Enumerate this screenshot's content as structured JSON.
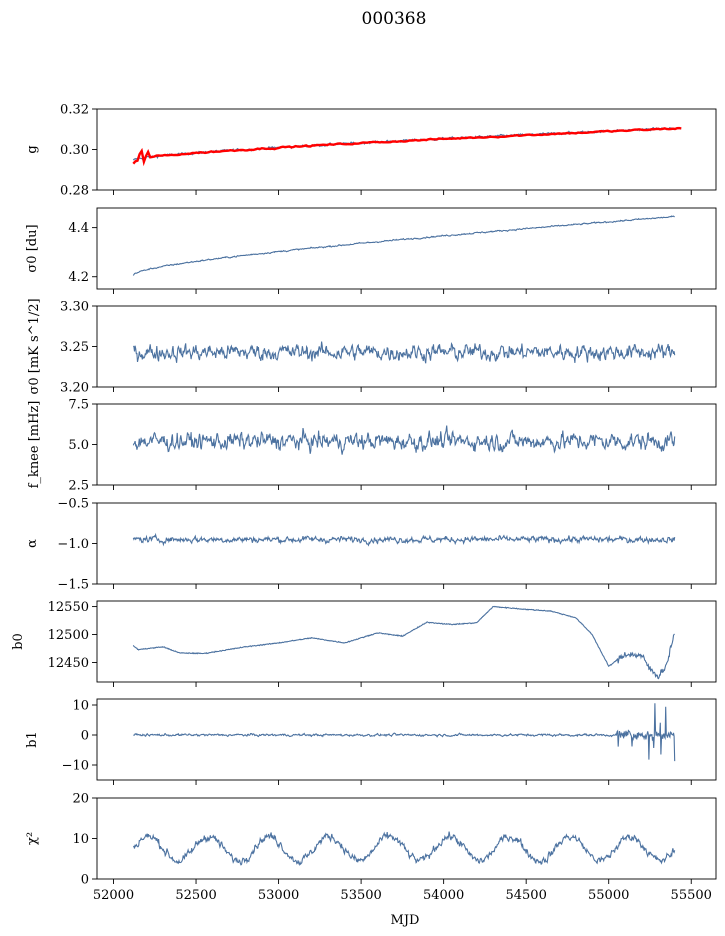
{
  "figure": {
    "title": "000368",
    "xlabel": "MJD"
  },
  "colors": {
    "series": "#4c72a0",
    "fit": "#ff0000"
  },
  "chart_data": {
    "type": "line",
    "title": "000368",
    "xlabel": "MJD",
    "xlim": [
      51900,
      55650
    ],
    "xticks": [
      52000,
      52500,
      53000,
      53500,
      54000,
      54500,
      55000,
      55500
    ],
    "x_start": 52120,
    "x_end": 55400,
    "panels": [
      {
        "id": "g",
        "ylabel": "g",
        "ylim": [
          0.28,
          0.32
        ],
        "yticks": [
          "0.28",
          "0.30",
          "0.32"
        ],
        "ytick_values": [
          0.28,
          0.3,
          0.32
        ],
        "series": [
          {
            "kind": "data",
            "color": "#4c72a0",
            "start": 0.2945,
            "end": 0.3105,
            "noise": 0.0006,
            "x_end": 55400,
            "curve": "concave"
          },
          {
            "kind": "fit",
            "color": "#ff0000",
            "start": 0.2945,
            "end": 0.3105,
            "noise": 0.0004,
            "x_end": 55440,
            "curve": "concave"
          }
        ]
      },
      {
        "id": "sigma0_du",
        "ylabel": "σ0 [du]",
        "ylim": [
          4.15,
          4.48
        ],
        "yticks": [
          "4.2",
          "4.4"
        ],
        "ytick_values": [
          4.2,
          4.4
        ],
        "series": [
          {
            "kind": "data",
            "color": "#4c72a0",
            "start": 4.205,
            "end": 4.445,
            "noise": 0.003,
            "x_end": 55400,
            "curve": "concave"
          }
        ]
      },
      {
        "id": "sigma0_mk",
        "ylabel": "σ0 [mK s^1/2]",
        "ylim": [
          3.2,
          3.3
        ],
        "yticks": [
          "3.20",
          "3.25",
          "3.30"
        ],
        "ytick_values": [
          3.2,
          3.25,
          3.3
        ],
        "series": [
          {
            "kind": "data",
            "color": "#4c72a0",
            "mean": 3.243,
            "noise": 0.01,
            "x_end": 55400
          }
        ]
      },
      {
        "id": "fknee",
        "ylabel": "f_knee [mHz]",
        "ylim": [
          2.5,
          7.5
        ],
        "yticks": [
          "2.5",
          "5.0",
          "7.5"
        ],
        "ytick_values": [
          2.5,
          5.0,
          7.5
        ],
        "series": [
          {
            "kind": "data",
            "color": "#4c72a0",
            "mean": 5.2,
            "noise": 0.55,
            "x_end": 55400
          }
        ]
      },
      {
        "id": "alpha",
        "ylabel": "α",
        "ylim": [
          -1.5,
          -0.5
        ],
        "yticks": [
          "−1.5",
          "−1.0",
          "−0.5"
        ],
        "ytick_values": [
          -1.5,
          -1.0,
          -0.5
        ],
        "series": [
          {
            "kind": "data",
            "color": "#4c72a0",
            "mean": -0.95,
            "noise": 0.04,
            "x_end": 55400
          }
        ]
      },
      {
        "id": "b0",
        "ylabel": "b0",
        "ylim": [
          12415,
          12560
        ],
        "yticks": [
          "12450",
          "12500",
          "12550"
        ],
        "ytick_values": [
          12450,
          12500,
          12550
        ],
        "series": [
          {
            "kind": "data",
            "color": "#4c72a0",
            "x_end": 55400,
            "keypoints": [
              [
                52120,
                12480
              ],
              [
                52150,
                12473
              ],
              [
                52300,
                12478
              ],
              [
                52400,
                12467
              ],
              [
                52550,
                12466
              ],
              [
                52800,
                12478
              ],
              [
                53000,
                12485
              ],
              [
                53200,
                12494
              ],
              [
                53400,
                12485
              ],
              [
                53600,
                12503
              ],
              [
                53750,
                12497
              ],
              [
                53900,
                12522
              ],
              [
                54050,
                12518
              ],
              [
                54200,
                12521
              ],
              [
                54300,
                12550
              ],
              [
                54500,
                12545
              ],
              [
                54650,
                12542
              ],
              [
                54800,
                12530
              ],
              [
                54900,
                12500
              ],
              [
                55000,
                12443
              ],
              [
                55100,
                12465
              ],
              [
                55200,
                12462
              ],
              [
                55250,
                12438
              ],
              [
                55300,
                12425
              ],
              [
                55350,
                12445
              ],
              [
                55400,
                12505
              ],
              [
                55450,
                12505
              ]
            ]
          }
        ]
      },
      {
        "id": "b1",
        "ylabel": "b1",
        "ylim": [
          -15,
          12
        ],
        "yticks": [
          "−10",
          "0",
          "10"
        ],
        "ytick_values": [
          -10,
          0,
          10
        ],
        "series": [
          {
            "kind": "data",
            "color": "#4c72a0",
            "mean": 0.0,
            "noise": 0.4,
            "x_end": 55400,
            "spiky_after": 55050
          }
        ]
      },
      {
        "id": "chi2",
        "ylabel": "χ²",
        "ylim": [
          0,
          20
        ],
        "yticks": [
          "0",
          "10",
          "20"
        ],
        "ytick_values": [
          0,
          10,
          20
        ],
        "series": [
          {
            "kind": "data",
            "color": "#4c72a0",
            "mean": 7.5,
            "amplitude": 3.0,
            "period": 365,
            "noise": 1.0,
            "x_end": 55400
          }
        ]
      }
    ]
  }
}
